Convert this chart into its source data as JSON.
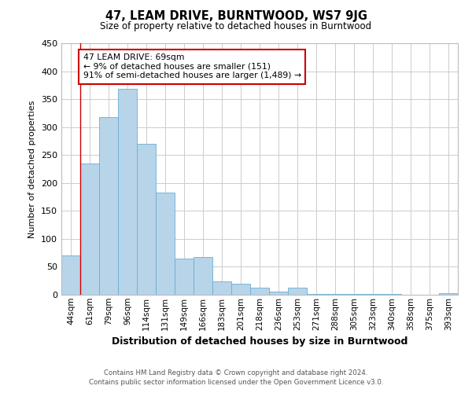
{
  "title": "47, LEAM DRIVE, BURNTWOOD, WS7 9JG",
  "subtitle": "Size of property relative to detached houses in Burntwood",
  "xlabel": "Distribution of detached houses by size in Burntwood",
  "ylabel": "Number of detached properties",
  "bar_labels": [
    "44sqm",
    "61sqm",
    "79sqm",
    "96sqm",
    "114sqm",
    "131sqm",
    "149sqm",
    "166sqm",
    "183sqm",
    "201sqm",
    "218sqm",
    "236sqm",
    "253sqm",
    "271sqm",
    "288sqm",
    "305sqm",
    "323sqm",
    "340sqm",
    "358sqm",
    "375sqm",
    "393sqm"
  ],
  "bar_values": [
    70,
    235,
    318,
    368,
    270,
    183,
    65,
    68,
    24,
    20,
    12,
    5,
    12,
    2,
    1,
    1,
    1,
    1,
    0,
    0,
    3
  ],
  "bar_color": "#b8d4e8",
  "bar_edge_color": "#6aaed6",
  "annotation_box_color": "#ffffff",
  "annotation_box_edge": "#cc0000",
  "annotation_line_color": "#cc0000",
  "annotation_text_line1": "47 LEAM DRIVE: 69sqm",
  "annotation_text_line2": "← 9% of detached houses are smaller (151)",
  "annotation_text_line3": "91% of semi-detached houses are larger (1,489) →",
  "property_line_x": 1,
  "ylim": [
    0,
    450
  ],
  "yticks": [
    0,
    50,
    100,
    150,
    200,
    250,
    300,
    350,
    400,
    450
  ],
  "footer_line1": "Contains HM Land Registry data © Crown copyright and database right 2024.",
  "footer_line2": "Contains public sector information licensed under the Open Government Licence v3.0.",
  "background_color": "#ffffff",
  "grid_color": "#cccccc"
}
